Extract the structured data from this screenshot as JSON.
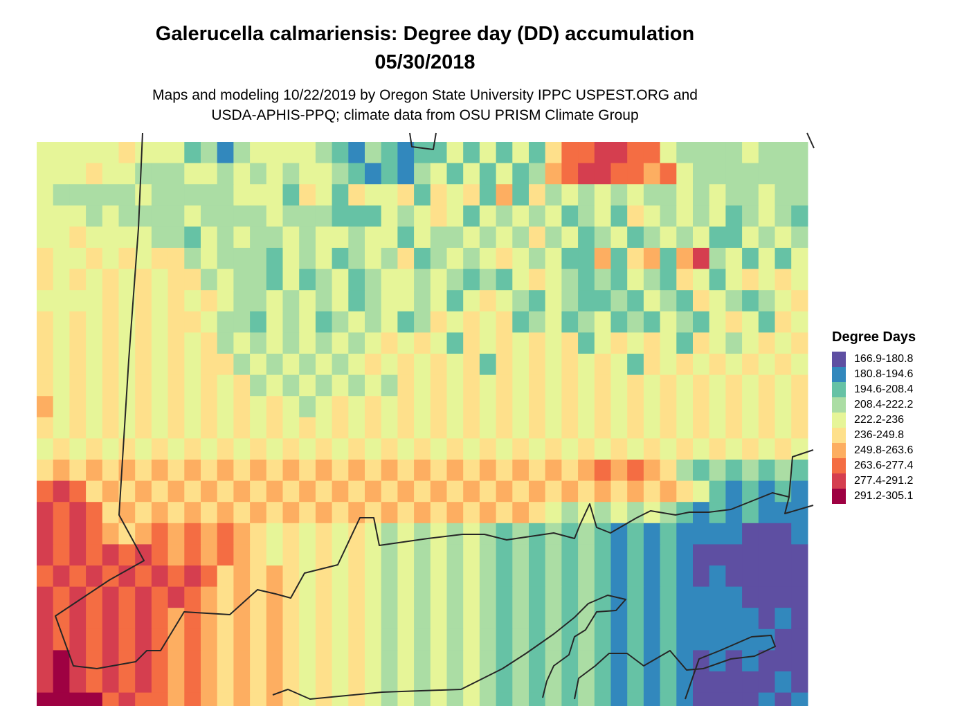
{
  "title_line1": "Galerucella calmariensis: Degree day (DD) accumulation",
  "title_line2": "05/30/2018",
  "subtitle_line1": "Maps and modeling 10/22/2019 by Oregon State University IPPC USPEST.ORG and",
  "subtitle_line2": "USDA-APHIS-PPQ; climate data from OSU PRISM Climate Group",
  "legend": {
    "title": "Degree Days",
    "classes": [
      {
        "label": "166.9-180.8",
        "color": "#5e4fa2"
      },
      {
        "label": "180.8-194.6",
        "color": "#3288bd"
      },
      {
        "label": "194.6-208.4",
        "color": "#66c2a5"
      },
      {
        "label": "208.4-222.2",
        "color": "#abdda4"
      },
      {
        "label": "222.2-236",
        "color": "#e6f598"
      },
      {
        "label": "236-249.8",
        "color": "#fee08b"
      },
      {
        "label": "249.8-263.6",
        "color": "#fdae61"
      },
      {
        "label": "263.6-277.4",
        "color": "#f46d43"
      },
      {
        "label": "277.4-291.2",
        "color": "#d53e4f"
      },
      {
        "label": "291.2-305.1",
        "color": "#9e0142"
      }
    ]
  },
  "grid": {
    "row_pattern": "RLE, run(2-char)+class(1 char, 0=no data, 1..10=a..j), 27 rows x 47 cols",
    "rows": [
      "05e01f03e01c01d01b01d04e01d01c01b01d01c01b02c01e01c01e01c01e01c01f02h02i02h01e04d01e06d07e",
      "03e01f02e03d02e01d01e01d01e01d02e01d01c01b01c01b01d01e01c01e01c01e01c01d01g01h02i02h01g01h01e08d01e01d01e01d02e02d01e",
      "01e05d01e05d03e01c01f01e01c01f02e01f01c01f01e01f01c01g01c01f01d01e01d01e01d01e02d01e01d01e02d01e03d02e02d02e01d01e",
      "03e01d01e04d01e04d01e03d03c01e01d01e01f01e01c01e01d01e01d01e01c01d01e01c01f01e01d01e01d01e01c01d01e01d01c01e01d03e02d01e01d02e01d01e02d01e",
      "02e01f04e02d01c01e01d01e02d01e01d02e01d02e01c01e02d01e01d01e01d01f01d01e01c01d01e01c01d01e01d01e02c01e01d01e01d01e03d01e01f01e01d01e01d01e01d",
      "01f02e01f01e01f01e02f01d01e03d01c01e01d01e01c01d01e01d01f01c01d01e01d01e01f01e01d01e02c01g01c01f01g01c01g01i01d01e01c01e01c01e01d01c01e01d01e01f01e01f01e01f01e",
      "01f01e01f01e01f01e01f01e02f01d01e02d01c01e01c01d01e01c01d02e01d01e01d01c01d01c01e01f01e01d01c01d01c01e01d01c01f01e01c01e01f01e01f01e01f01e01f01e01f01e01f01e01f01e",
      "04e01f01e01f01e01f01e01f01e02d01e01d01e01d01e01c01d02e01d01e01c01e01f01e01d01c01e01d02c01d01c01e01d01c01f01e01d01c01d01e01f01e01d01e01f01e01f01e01f01e01f01e",
      "01f01e01f01e01f01e01f01e02f01e02d01c01e01d01e01c01d01e01d01e01c01d01f01e01f01e01f01c01d01e01c01d01e01c01d01c01e01d01c01e01f01e01c01f01e01f01e01f01e01f01e01f01e",
      "01f01e01f01e01f01e01f01e01f01e01f01d01e01d01e01d01e01d01e01d01e01f01e01f01e01c01f01e01f01e01f01e01f01c01e01f01e01f01e01c01f01e01d01e01f01e01f01e01f01e01f01e01d",
      "01f01e01f01e01f01e01f01e01f01e02f01d01e01d01e01d01e01d01e01f01e01f01e01f01e01f01c01f01e01f01e01f01e01f01e01c01f01e01f01e01f01e01f01e01f01e01f01e01f01e01d01e",
      "01f01e01f01e01f01e01f01e01f01e01f01e01f01d01e01d01e01d01e01d01e01d01f01e01f01e01f01e01f01e01f01e01f01e01f01e01f01e01f01e01f01e01f01e01f01e01f01e01f01e01f01e01f",
      "01g01e01f01e01f01e01f01e01f01e01f01e01f01e01f01e01d01e01f01e01f01e01f01e01f01e01f01e01f01e01f01e01f01e01f01e01f01e01f01e01f01e01f01e01f01e01f01e01f01e01f01e01f",
      "01f01e01f01e01f01e01f01e01f01e01f01e01f01e01f01e01f01e01f01e01f01e01f01e01f01e01f01e01f01e01f01e01f01e01f01e01f01e01f01e01f01e01f01e01f01e01f01e01f01e01f01e01f",
      "01e01f01e01f01e01f01e01f01e01f01e01f01e01f01e01f01e01f01e01f01e01f01e01f01e01f01e01f01e01f01e01f01e01f01e01f01e01f01e01f01e01f01e01f01e01f01e01f01e01f01e01f01e",
      "01f01g01f01g01f01g01f01g01f01g01f01g01f01g01f01g01f01g01f01g01f01g01f01g01f01g01f01g01f01g01f01g01f01g01h01g01h01g01f01d01c01d01c01d01c01d01c01d01c01d01c01d",
      "01h01i01h01f01g01f01g01f01g01f01g01f01g01f01g01f01g01f01g01f01g01f01g01f01g01f01g01f01g01f01g01f01g01f01g01f01g01f01g01f01e01c01b01c01b01c01b01c01b01c01b01c",
      "01i01h01i01h01f01g01f01g01f01g01f01g01f01g01f01g01f01g01f01g01f01g01f01g01f01g01f01g01f01g01f01e01d01e01d01e01d01e01d01c01b01c01b01c01b01b01b01b01b01b01b01b",
      "01i01h01i01h01g01f01g01h01g01h01g01h01g01f01e01f01e01f01e01f01e01d01e01d01e01d01e01d01c01d01c01d01c01d01c01b01c01b01c01b01b01b01b01a01a01a01b01a01a01a01a01a",
      "01i01h01i01h01i01h01i01h01g01h01g01h01g01f01e01f01e01f01e01f01e01d01e01d01e01d01e01d01c01d01c01d01c01d01c01b01c01b01c01b01a01a01a01a01a01a01a01a01a01a01a01a",
      "01h01i01h01i01h01i01h01i01h01i01h01f01g01f01g01f01e01f01e01f01e01d01e01d01e01d01e01d01c01d01c01d01c01d01c01b01c01b01c01b01a01b01a01a01a01a01a01a01a01a01a01a",
      "01i01h01i01h01i01h01i01h01i01h01g01f01g01f01g01f01e01f01e01f01e01d01e01d01e01d01e01d01c01d01c01d01c01d01c01b01c01b01c01b01b01b01b01a01a01a01a01a01a01a01a01a",
      "01i01h01i01h01i01h01i01h01g01h01g01f01g01f01g01f01e01f01e01f01e01d01e01d01e01d01e01d01c01d01c01d01c01d01c01b01c01b01c01b01b01b01b01b01a01b01a01a01a01a01a01a",
      "01i01h01i01h01i01h01i01h01g01h01g01f01g01f01g01f01e01f01e01f01e01d01e01d01e01d01e01d01c01d01c01d01c01d01c01b01c01b01c01b01b01b01b01b01b01a01a01a01a01a01a01a",
      "01i01j01i01h01i01h01i01h01g01h01g01f01g01f01g01f01e01f01e01f01e01d01e01d01e01d01e01d01c01d01c01d01c01d01c01b01c01b01c01b01a01b01a01b01a01a01a01a01a01a01a01a",
      "01i01j01i01h01i01h01i01h01g01h01g01f01g01f01g01f01e01f01e01f01e01d01e01d01e01d01e01d01c01d01c01d01c01d01c01b01c01b01c01b01a01a01a01a01a01b01a01a01a01a01a01a",
      "01j01j01j01j01h01i01h01h01g01h01g01f01g01f01g01f01e01f01e01f01e01d01e01d01e01d01e01d01c01d01c01d01c01d01c01b01c01b01c01b01a01a01a01a01b01a01b01a01a01a01a01a"
    ]
  }
}
